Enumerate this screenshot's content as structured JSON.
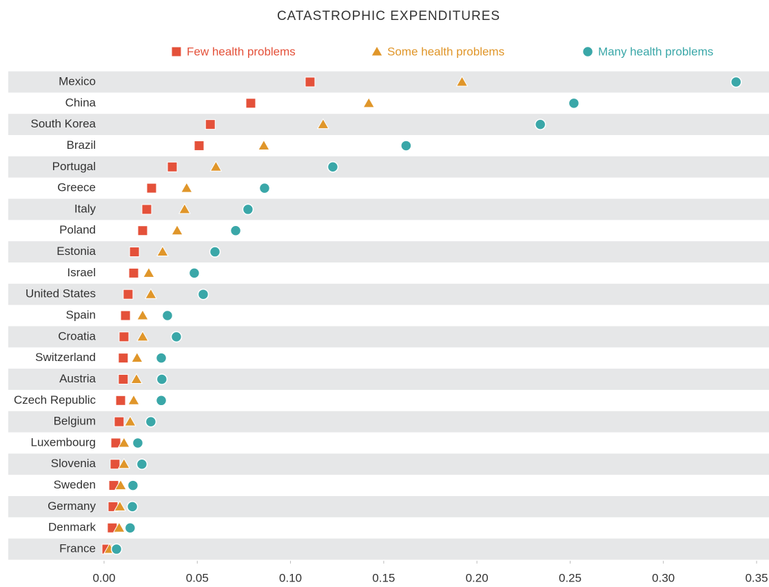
{
  "chart_data": {
    "type": "dot",
    "title": "CATASTROPHIC EXPENDITURES",
    "categories": [
      "Mexico",
      "China",
      "South Korea",
      "Brazil",
      "Portugal",
      "Greece",
      "Italy",
      "Poland",
      "Estonia",
      "Israel",
      "United States",
      "Spain",
      "Croatia",
      "Switzerland",
      "Austria",
      "Czech Republic",
      "Belgium",
      "Luxembourg",
      "Slovenia",
      "Sweden",
      "Germany",
      "Denmark",
      "France"
    ],
    "series": [
      {
        "name": "Few health problems",
        "color": "#e4513a",
        "marker": "square",
        "values": [
          0.1105,
          0.0787,
          0.057,
          0.051,
          0.0366,
          0.0255,
          0.0229,
          0.0207,
          0.0163,
          0.0159,
          0.0129,
          0.0115,
          0.0107,
          0.0103,
          0.0103,
          0.0089,
          0.0081,
          0.0063,
          0.0059,
          0.0052,
          0.0048,
          0.0044,
          0.0015
        ]
      },
      {
        "name": "Some health problems",
        "color": "#e0962a",
        "marker": "triangle",
        "values": [
          0.192,
          0.142,
          0.1175,
          0.0857,
          0.06,
          0.0443,
          0.0432,
          0.0392,
          0.0314,
          0.024,
          0.0251,
          0.0207,
          0.0207,
          0.0177,
          0.0174,
          0.0159,
          0.014,
          0.0107,
          0.0107,
          0.0089,
          0.0085,
          0.0081,
          0.003
        ]
      },
      {
        "name": "Many health problems",
        "color": "#3aa7a8",
        "marker": "circle",
        "values": [
          0.339,
          0.252,
          0.234,
          0.162,
          0.1227,
          0.0861,
          0.0772,
          0.0706,
          0.0595,
          0.0484,
          0.0532,
          0.034,
          0.0388,
          0.0307,
          0.031,
          0.0307,
          0.0251,
          0.0181,
          0.0203,
          0.0155,
          0.0152,
          0.014,
          0.0067
        ]
      }
    ],
    "xlim": [
      0,
      0.35
    ],
    "xticks": [
      {
        "value": 0,
        "label": "0.00"
      },
      {
        "value": 0.05,
        "label": "0.05"
      },
      {
        "value": 0.1,
        "label": "0.10"
      },
      {
        "value": 0.15,
        "label": "0.15"
      },
      {
        "value": 0.2,
        "label": "0.20"
      },
      {
        "value": 0.25,
        "label": "0.25"
      },
      {
        "value": 0.3,
        "label": "0.30"
      },
      {
        "value": 0.35,
        "label": "0.35"
      }
    ],
    "legend": "top"
  }
}
